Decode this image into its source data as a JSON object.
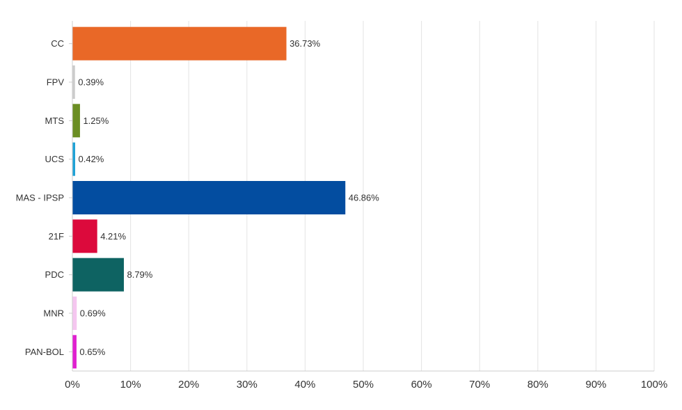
{
  "chart_data": {
    "type": "bar",
    "orientation": "horizontal",
    "categories": [
      "CC",
      "FPV",
      "MTS",
      "UCS",
      "MAS - IPSP",
      "21F",
      "PDC",
      "MNR",
      "PAN-BOL"
    ],
    "values": [
      36.73,
      0.39,
      1.25,
      0.42,
      46.86,
      4.21,
      8.79,
      0.69,
      0.65
    ],
    "value_labels": [
      "36.73%",
      "0.39%",
      "1.25%",
      "0.42%",
      "46.86%",
      "4.21%",
      "8.79%",
      "0.69%",
      "0.65%"
    ],
    "colors": [
      "#e96827",
      "#cccccc",
      "#6b8e23",
      "#1fa2d6",
      "#034da0",
      "#dc0a3c",
      "#0e6362",
      "#f5c6f0",
      "#e020d0"
    ],
    "xlim": [
      0,
      100
    ],
    "x_ticks": [
      "0%",
      "10%",
      "20%",
      "30%",
      "40%",
      "50%",
      "60%",
      "70%",
      "80%",
      "90%",
      "100%"
    ],
    "grid": true,
    "title": "",
    "xlabel": "",
    "ylabel": ""
  }
}
